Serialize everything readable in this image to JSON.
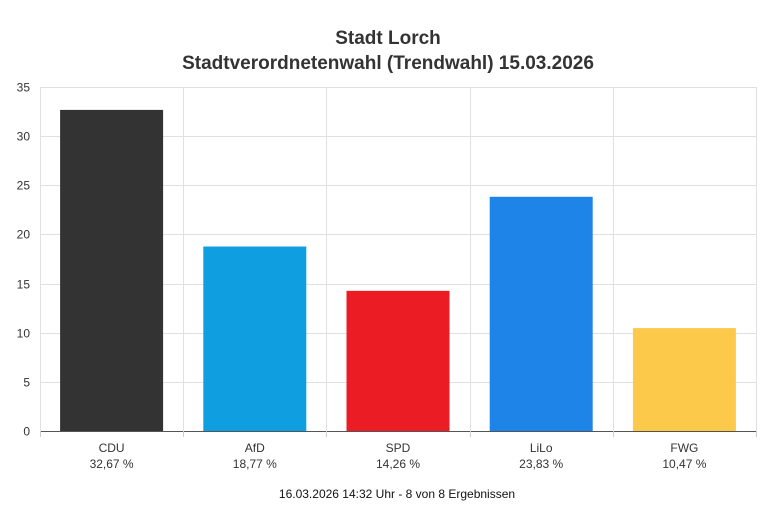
{
  "chart_data": {
    "type": "bar",
    "title": "Stadt Lorch",
    "subtitle": "Stadtverordnetenwahl (Trendwahl) 15.03.2026",
    "categories": [
      "CDU",
      "AfD",
      "SPD",
      "LiLo",
      "FWG"
    ],
    "values": [
      32.67,
      18.77,
      14.26,
      23.83,
      10.47
    ],
    "value_labels": [
      "32,67 %",
      "18,77 %",
      "14,26 %",
      "23,83 %",
      "10,47 %"
    ],
    "colors": [
      "#333333",
      "#0f9ee0",
      "#ec1c24",
      "#1e84e8",
      "#fdc94a"
    ],
    "yticks": [
      "0",
      "5",
      "10",
      "15",
      "20",
      "25",
      "30",
      "35"
    ],
    "ylim": [
      0,
      35
    ],
    "grid": true,
    "legend": "none",
    "footer": "16.03.2026 14:32 Uhr - 8 von 8 Ergebnissen"
  }
}
